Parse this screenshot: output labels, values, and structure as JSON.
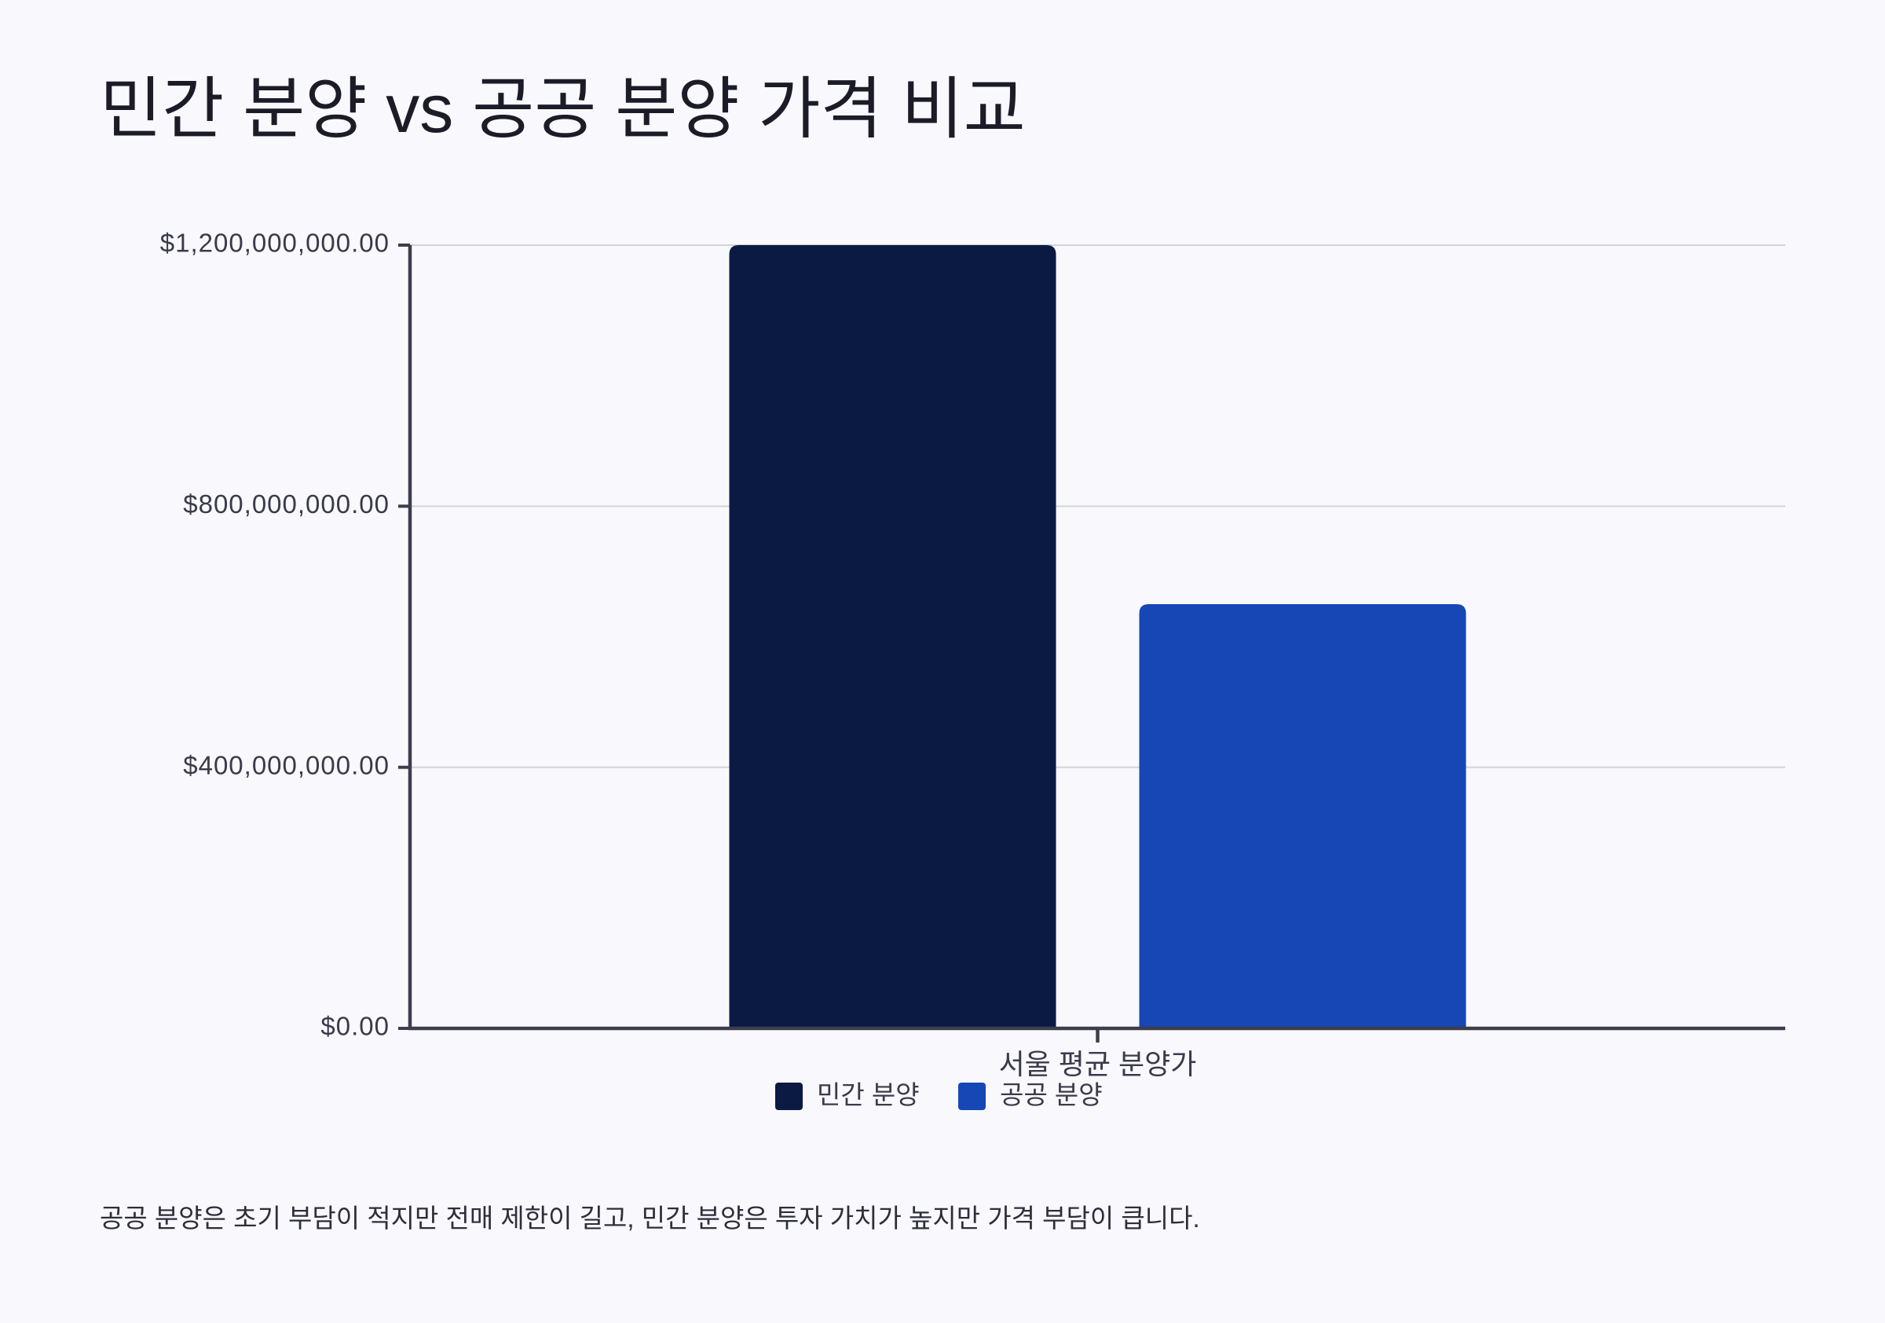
{
  "page": {
    "background": "#f8f8fd"
  },
  "chart_data": {
    "type": "bar",
    "title": "민간 분양 vs 공공 분양 가격 비교",
    "categories": [
      "서울 평균 분양가"
    ],
    "series": [
      {
        "name": "민간 분양",
        "values": [
          1200000000
        ],
        "color": "#0b1a43"
      },
      {
        "name": "공공 분양",
        "values": [
          650000000
        ],
        "color": "#1746b5"
      }
    ],
    "xlabel": "",
    "ylabel": "",
    "ylim": [
      0,
      1200000000
    ],
    "y_ticks": [
      0,
      400000000,
      800000000,
      1200000000
    ],
    "y_tick_labels": [
      "$0.00",
      "$400,000,000.00",
      "$800,000,000.00",
      "$1,200,000,000.00"
    ],
    "grid": true,
    "legend": "bottom-center",
    "axis_color": "#3d3d4d",
    "grid_color": "#d2d2da",
    "label_color": "#3a3a4a"
  },
  "footnote": "공공 분양은 초기 부담이 적지만 전매 제한이 길고, 민간 분양은 투자 가치가 높지만 가격 부담이 큽니다."
}
